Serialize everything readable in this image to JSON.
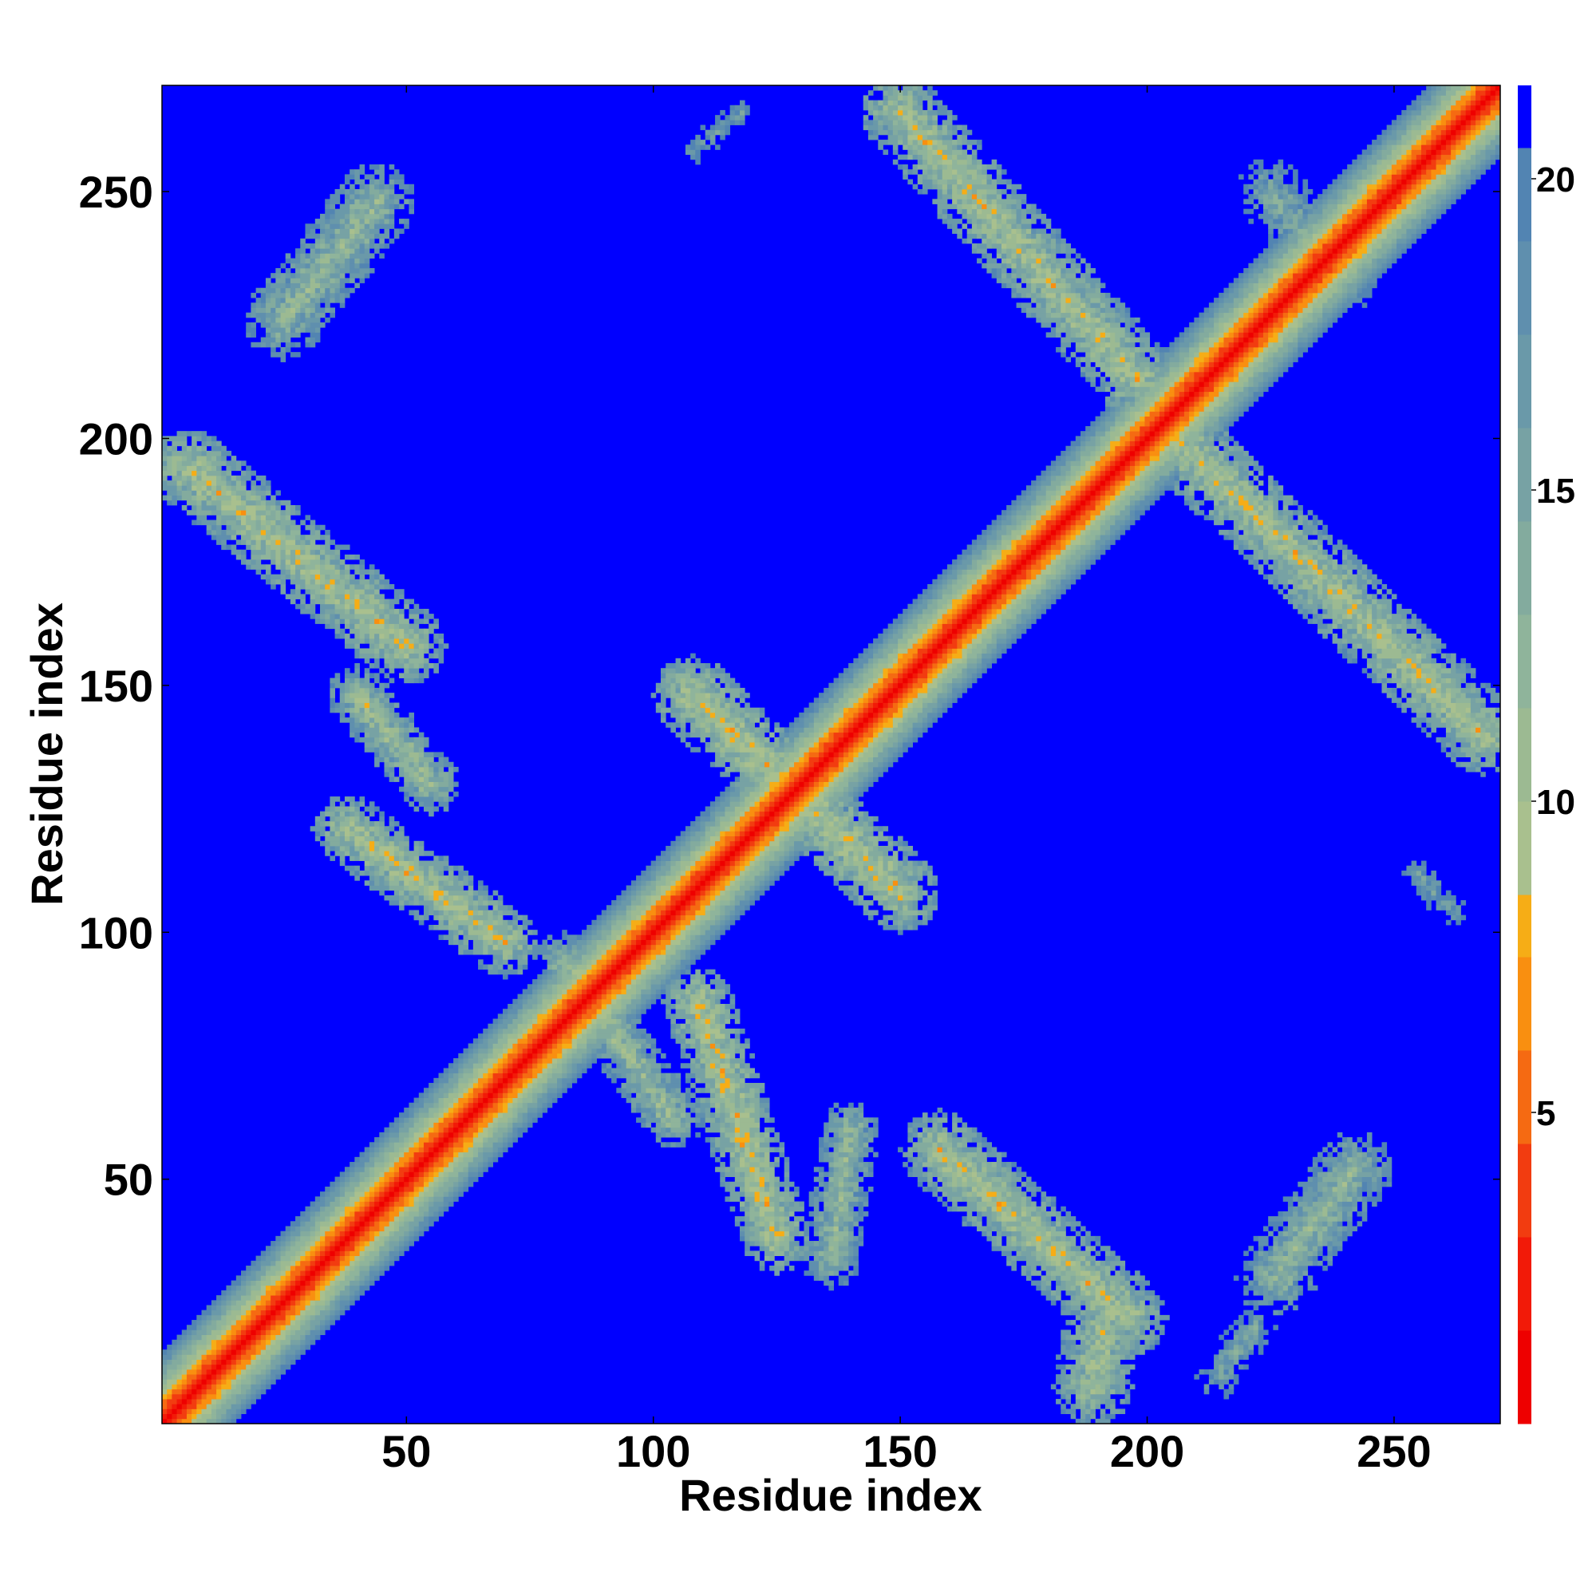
{
  "chart_data": {
    "type": "heatmap",
    "title": "",
    "xlabel": "Residue index",
    "ylabel": "Residue index",
    "xlim": [
      0.5,
      271.5
    ],
    "ylim": [
      0.5,
      271.5
    ],
    "xticks": [
      50,
      100,
      150,
      200,
      250
    ],
    "yticks": [
      50,
      100,
      150,
      200,
      250
    ],
    "n_residues": 271,
    "value_meaning": "inter-residue distance; values above 21 shown in background colour",
    "background_value": 21.5,
    "colorbar": {
      "range": [
        0,
        21.5
      ],
      "ticks": [
        5,
        10,
        15,
        20
      ],
      "levels": [
        {
          "max": 1.5,
          "color": "#ee0000"
        },
        {
          "max": 3.0,
          "color": "#f21a08"
        },
        {
          "max": 4.5,
          "color": "#f23c10"
        },
        {
          "max": 6.0,
          "color": "#f56a12"
        },
        {
          "max": 7.5,
          "color": "#f98f10"
        },
        {
          "max": 8.5,
          "color": "#f6ad16"
        },
        {
          "max": 10.0,
          "color": "#a9c08e"
        },
        {
          "max": 11.5,
          "color": "#9cba92"
        },
        {
          "max": 13.0,
          "color": "#8fb49b"
        },
        {
          "max": 14.5,
          "color": "#83ab9e"
        },
        {
          "max": 16.0,
          "color": "#77a2a4"
        },
        {
          "max": 17.5,
          "color": "#6a99a9"
        },
        {
          "max": 19.0,
          "color": "#5f8fae"
        },
        {
          "max": 20.5,
          "color": "#5284b2"
        },
        {
          "max": 21.5,
          "color": "#0000ff"
        }
      ]
    },
    "contact_bands": [
      {
        "from": [
          109,
          86
        ],
        "to": [
          125,
          38
        ],
        "width": 7,
        "min_distance": 6.5
      },
      {
        "from": [
          158,
          56
        ],
        "to": [
          196,
          22
        ],
        "width": 8,
        "min_distance": 7.0
      },
      {
        "from": [
          189,
          8
        ],
        "to": [
          192,
          26
        ],
        "width": 8,
        "min_distance": 7.5
      },
      {
        "from": [
          140,
          60
        ],
        "to": [
          136,
          34
        ],
        "width": 6,
        "min_distance": 9.0
      },
      {
        "from": [
          242,
          52
        ],
        "to": [
          226,
          30
        ],
        "width": 8,
        "min_distance": 9.5
      },
      {
        "from": [
          214,
          10
        ],
        "to": [
          222,
          20
        ],
        "width": 5,
        "min_distance": 12.0
      },
      {
        "from": [
          38,
          121
        ],
        "to": [
          70,
          98
        ],
        "width": 7,
        "min_distance": 7.0
      },
      {
        "from": [
          82,
          94
        ],
        "to": [
          104,
          62
        ],
        "width": 6,
        "min_distance": 8.5
      },
      {
        "from": [
          108,
          148
        ],
        "to": [
          150,
          108
        ],
        "width": 8,
        "min_distance": 6.5
      },
      {
        "from": [
          150,
          266
        ],
        "to": [
          198,
          212
        ],
        "width": 8,
        "min_distance": 7.0
      },
      {
        "from": [
          206,
          200
        ],
        "to": [
          268,
          140
        ],
        "width": 8,
        "min_distance": 7.0
      },
      {
        "from": [
          6,
          194
        ],
        "to": [
          50,
          158
        ],
        "width": 8,
        "min_distance": 7.0
      },
      {
        "from": [
          25,
          224
        ],
        "to": [
          44,
          248
        ],
        "width": 8,
        "min_distance": 9.0
      },
      {
        "from": [
          40,
          148
        ],
        "to": [
          55,
          130
        ],
        "width": 6,
        "min_distance": 8.0
      },
      {
        "from": [
          225,
          250
        ],
        "to": [
          240,
          232
        ],
        "width": 7,
        "min_distance": 11.0
      },
      {
        "from": [
          255,
          112
        ],
        "to": [
          262,
          104
        ],
        "width": 4,
        "min_distance": 13.0
      },
      {
        "from": [
          108,
          258
        ],
        "to": [
          118,
          266
        ],
        "width": 4,
        "min_distance": 14.0
      }
    ]
  }
}
